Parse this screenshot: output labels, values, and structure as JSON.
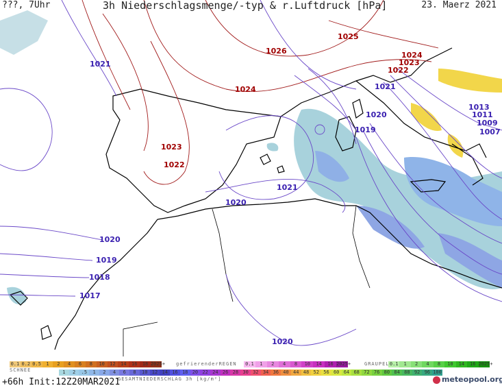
{
  "header": {
    "left": "???, 7Uhr",
    "title": "3h Niederschlagsmenge/-typ & r.Luftdruck [hPa]",
    "date": "23. Maerz 2021"
  },
  "isobars": [
    {
      "value": "1026",
      "kind": "hi"
    },
    {
      "value": "1025",
      "kind": "hi"
    },
    {
      "value": "1024",
      "kind": "hi"
    },
    {
      "value": "1024",
      "kind": "hi"
    },
    {
      "value": "1023",
      "kind": "hi"
    },
    {
      "value": "1022",
      "kind": "hi"
    },
    {
      "value": "1023",
      "kind": "hi"
    },
    {
      "value": "1022",
      "kind": "hi"
    },
    {
      "value": "1021",
      "kind": "lo"
    },
    {
      "value": "1021",
      "kind": "lo"
    },
    {
      "value": "1020",
      "kind": "lo"
    },
    {
      "value": "1019",
      "kind": "lo"
    },
    {
      "value": "1021",
      "kind": "lo"
    },
    {
      "value": "1020",
      "kind": "lo"
    },
    {
      "value": "1020",
      "kind": "lo"
    },
    {
      "value": "1019",
      "kind": "lo"
    },
    {
      "value": "1018",
      "kind": "lo"
    },
    {
      "value": "1017",
      "kind": "lo"
    },
    {
      "value": "1020",
      "kind": "lo"
    },
    {
      "value": "1013",
      "kind": "lo"
    },
    {
      "value": "1011",
      "kind": "lo"
    },
    {
      "value": "1009",
      "kind": "lo"
    },
    {
      "value": "1007",
      "kind": "lo"
    }
  ],
  "legend": {
    "snow_label": "SCHNEE",
    "freezing_rain_label": "gefrierenderREGEN",
    "hail_label": "GRAUPEL",
    "total_label": "GESAMTNIEDERSCHLAG 3h [kg/m²]",
    "snow_scale": [
      {
        "label": "0.1",
        "color": "#f0c878"
      },
      {
        "label": "0.2",
        "color": "#f0c060"
      },
      {
        "label": "0.5",
        "color": "#f0b848"
      },
      {
        "label": "1",
        "color": "#f0b030"
      },
      {
        "label": "2",
        "color": "#e8a020"
      },
      {
        "label": "4",
        "color": "#e09020"
      },
      {
        "label": "6",
        "color": "#d88020"
      },
      {
        "label": "8",
        "color": "#d07020"
      },
      {
        "label": "10",
        "color": "#c86020"
      },
      {
        "label": "12",
        "color": "#c05020"
      },
      {
        "label": "14",
        "color": "#b84018"
      },
      {
        "label": "16",
        "color": "#b03018"
      },
      {
        "label": "18",
        "color": "#a02818"
      },
      {
        "label": "2025+",
        "color": "#903018"
      }
    ],
    "freezing_scale": [
      {
        "label": "0.1",
        "color": "#f8b8f0"
      },
      {
        "label": "1",
        "color": "#f0a0e8"
      },
      {
        "label": "2",
        "color": "#e888e0"
      },
      {
        "label": "4",
        "color": "#e070d8"
      },
      {
        "label": "8",
        "color": "#d858d0"
      },
      {
        "label": "10",
        "color": "#d040c8"
      },
      {
        "label": "14",
        "color": "#c830c0"
      },
      {
        "label": "16",
        "color": "#b020b0"
      },
      {
        "label": "2025+",
        "color": "#9818a0"
      }
    ],
    "hail_scale": [
      {
        "label": "0.1",
        "color": "#b8f0a8"
      },
      {
        "label": "1",
        "color": "#a0e890"
      },
      {
        "label": "2",
        "color": "#88e078"
      },
      {
        "label": "4",
        "color": "#70d860"
      },
      {
        "label": "8",
        "color": "#58d048"
      },
      {
        "label": "10",
        "color": "#40c830"
      },
      {
        "label": "14",
        "color": "#30b820"
      },
      {
        "label": "16",
        "color": "#20a818"
      },
      {
        "label": "2025+",
        "color": "#189010"
      }
    ],
    "total_scale": [
      {
        "label": "1",
        "color": "#a8d8e0"
      },
      {
        "label": "2",
        "color": "#a0d0e8"
      },
      {
        "label": ".5",
        "color": "#98c8e8"
      },
      {
        "label": "1",
        "color": "#90b8e8"
      },
      {
        "label": "2",
        "color": "#88a8e8"
      },
      {
        "label": "4",
        "color": "#8090e0"
      },
      {
        "label": "6",
        "color": "#7878e0"
      },
      {
        "label": "8",
        "color": "#6868d8"
      },
      {
        "label": "10",
        "color": "#5858d0"
      },
      {
        "label": "12",
        "color": "#4848c8"
      },
      {
        "label": "14",
        "color": "#4040c0"
      },
      {
        "label": "16",
        "color": "#5050e0"
      },
      {
        "label": "18",
        "color": "#6060f0"
      },
      {
        "label": "20",
        "color": "#8050e8"
      },
      {
        "label": "22",
        "color": "#9040e0"
      },
      {
        "label": "24",
        "color": "#a838d0"
      },
      {
        "label": "26",
        "color": "#c030c0"
      },
      {
        "label": "28",
        "color": "#d838a8"
      },
      {
        "label": "30",
        "color": "#e84090"
      },
      {
        "label": "32",
        "color": "#f05070"
      },
      {
        "label": "34",
        "color": "#f06050"
      },
      {
        "label": "36",
        "color": "#f07840"
      },
      {
        "label": "40",
        "color": "#f09040"
      },
      {
        "label": "44",
        "color": "#f0a840"
      },
      {
        "label": "48",
        "color": "#f0c040"
      },
      {
        "label": "52",
        "color": "#f0d040"
      },
      {
        "label": "56",
        "color": "#e8e040"
      },
      {
        "label": "60",
        "color": "#d8e840"
      },
      {
        "label": "64",
        "color": "#c0e840"
      },
      {
        "label": "68",
        "color": "#a8e040"
      },
      {
        "label": "72",
        "color": "#90d840"
      },
      {
        "label": "76",
        "color": "#78d040"
      },
      {
        "label": "80",
        "color": "#60c840"
      },
      {
        "label": "84",
        "color": "#50c050"
      },
      {
        "label": "88",
        "color": "#48b860"
      },
      {
        "label": "92",
        "color": "#40b070"
      },
      {
        "label": "96",
        "color": "#38a880"
      },
      {
        "label": "100",
        "color": "#30a090"
      }
    ]
  },
  "footer": {
    "run": "+66h Init:12Z20MAR2021",
    "logo": "meteopool.org"
  }
}
